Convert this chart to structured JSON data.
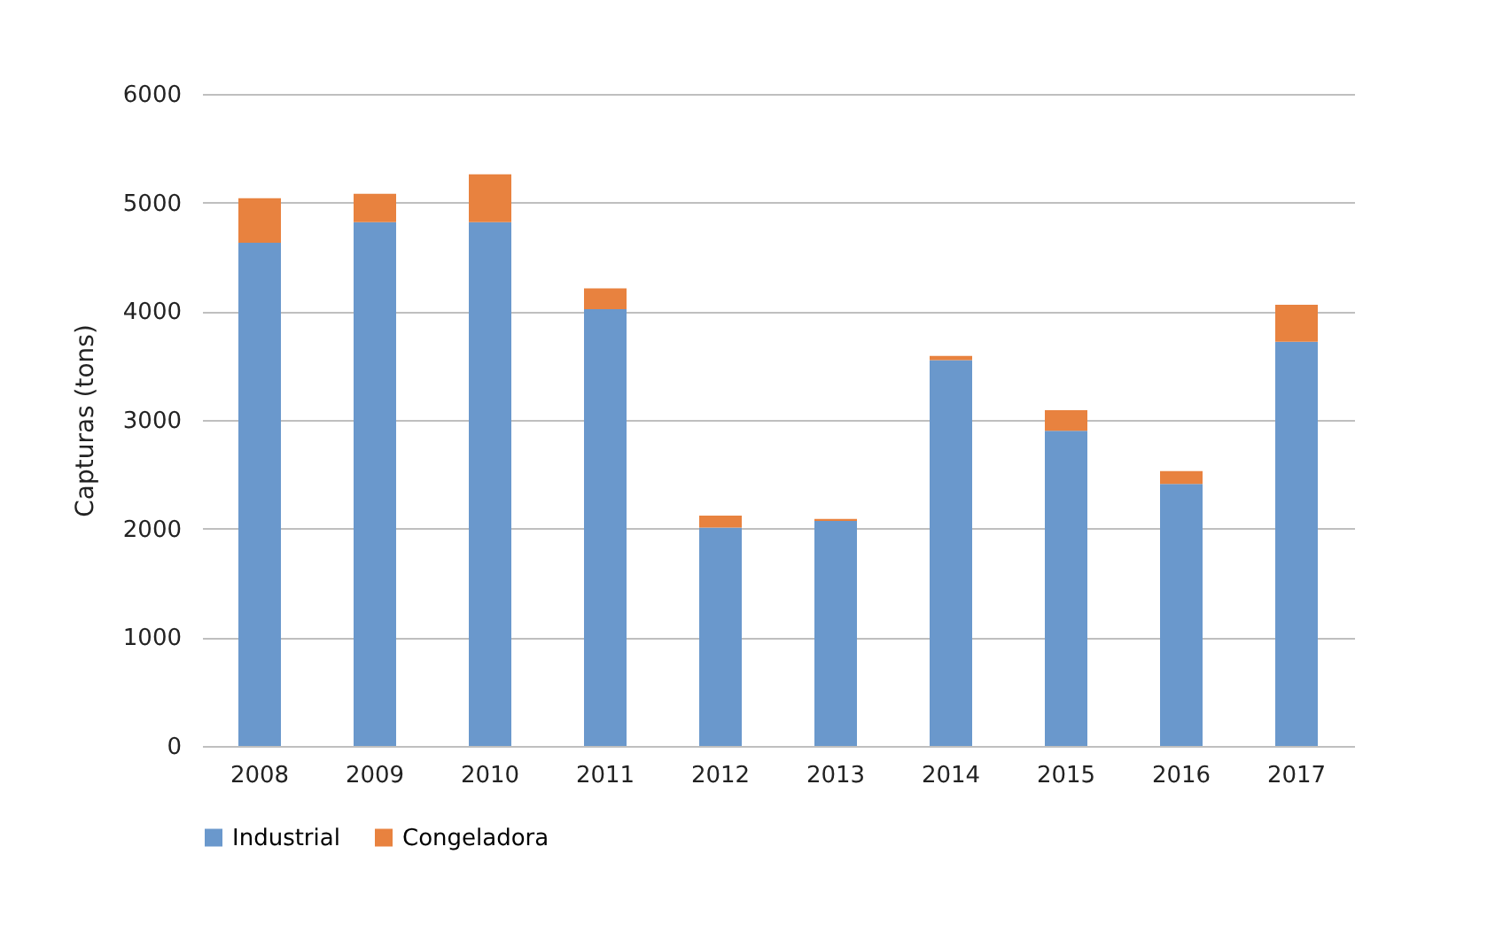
{
  "chart_data": {
    "type": "bar",
    "stacked": true,
    "ylabel": "Capturas (tons)",
    "categories": [
      "2008",
      "2009",
      "2010",
      "2011",
      "2012",
      "2013",
      "2014",
      "2015",
      "2016",
      "2017"
    ],
    "series": [
      {
        "name": "Industrial",
        "color": "#6a98cc",
        "values": [
          4630,
          4820,
          4820,
          4020,
          2010,
          2070,
          3550,
          2900,
          2410,
          3720
        ]
      },
      {
        "name": "Congeladora",
        "color": "#e8823f",
        "values": [
          410,
          260,
          440,
          190,
          110,
          20,
          40,
          190,
          120,
          340
        ]
      }
    ],
    "ylim": [
      0,
      6000
    ],
    "yticks": [
      0,
      1000,
      2000,
      3000,
      4000,
      5000,
      6000
    ],
    "grid": "y",
    "legend": "bottom"
  }
}
